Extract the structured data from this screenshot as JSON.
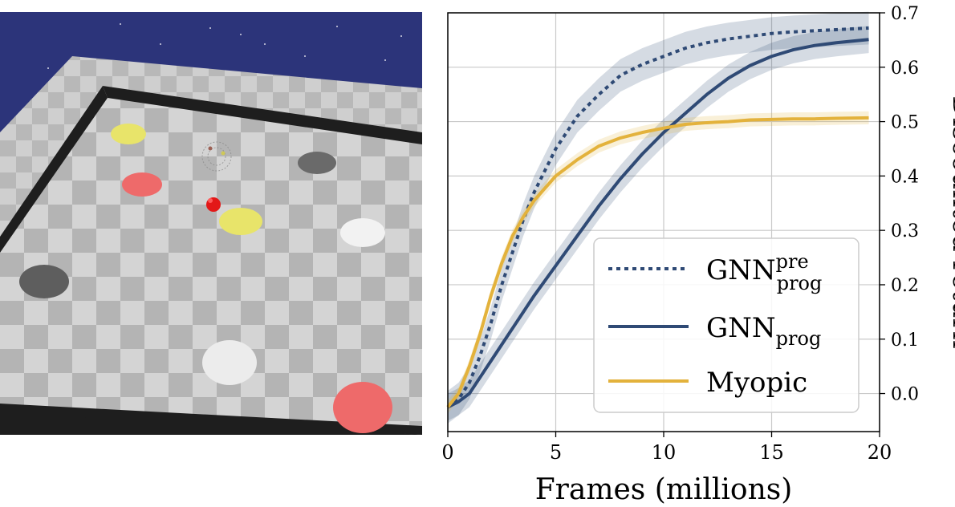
{
  "figure": {
    "scene_caption": ""
  },
  "scene": {
    "sky_color": "#2c347a",
    "floor_light": "#d6d6d6",
    "floor_dark": "#b2b2b2",
    "wall_color": "#1e1e1e",
    "objects": [
      {
        "name": "yellow-disc",
        "color": "#e8e46a"
      },
      {
        "name": "red-disc",
        "color": "#ee6a6a"
      },
      {
        "name": "dark-gray-disc",
        "color": "#6a6a6a"
      },
      {
        "name": "white-disc",
        "color": "#f2f2f2"
      },
      {
        "name": "agent",
        "color": "#e31818"
      }
    ]
  },
  "chart_data": {
    "type": "line",
    "title": "",
    "xlabel": "Frames (millions)",
    "ylabel": "Discounted return",
    "xlim": [
      0,
      20
    ],
    "ylim": [
      -0.07,
      0.7
    ],
    "xticks": [
      0,
      5,
      10,
      15,
      20
    ],
    "yticks": [
      0.0,
      0.1,
      0.2,
      0.3,
      0.4,
      0.5,
      0.6,
      0.7
    ],
    "grid": true,
    "legend_position": "bottom-right",
    "series": [
      {
        "name": "GNN",
        "name_sub": "prog",
        "name_sup": "pre",
        "style": "dotted",
        "color": "#2f4a75",
        "x": [
          0,
          0.5,
          1,
          1.5,
          2,
          2.5,
          3,
          3.5,
          4,
          5,
          6,
          7,
          8,
          9,
          10,
          11,
          12,
          13,
          14,
          15,
          16,
          17,
          18,
          19.5
        ],
        "y": [
          -0.025,
          -0.01,
          0.02,
          0.07,
          0.13,
          0.2,
          0.26,
          0.32,
          0.37,
          0.45,
          0.51,
          0.55,
          0.585,
          0.605,
          0.62,
          0.635,
          0.645,
          0.652,
          0.657,
          0.662,
          0.665,
          0.667,
          0.669,
          0.672
        ],
        "band": 0.03
      },
      {
        "name": "GNN",
        "name_sub": "prog",
        "name_sup": "",
        "style": "solid",
        "color": "#2f4a75",
        "x": [
          0,
          0.5,
          1,
          1.5,
          2,
          2.5,
          3,
          3.5,
          4,
          5,
          6,
          7,
          8,
          9,
          10,
          11,
          12,
          13,
          14,
          15,
          16,
          17,
          18,
          19.5
        ],
        "y": [
          -0.025,
          -0.015,
          0.0,
          0.03,
          0.06,
          0.09,
          0.12,
          0.15,
          0.18,
          0.235,
          0.29,
          0.345,
          0.395,
          0.44,
          0.48,
          0.515,
          0.55,
          0.58,
          0.603,
          0.62,
          0.632,
          0.64,
          0.645,
          0.651
        ],
        "band": 0.025
      },
      {
        "name": "Myopic",
        "name_sub": "",
        "name_sup": "",
        "style": "solid",
        "color": "#e3b23c",
        "x": [
          0,
          0.5,
          1,
          1.5,
          2,
          2.5,
          3,
          3.5,
          4,
          5,
          6,
          7,
          8,
          9,
          10,
          11,
          12,
          13,
          14,
          15,
          16,
          17,
          18,
          19.5
        ],
        "y": [
          -0.025,
          0.0,
          0.05,
          0.11,
          0.18,
          0.24,
          0.29,
          0.325,
          0.355,
          0.4,
          0.43,
          0.455,
          0.47,
          0.48,
          0.488,
          0.495,
          0.498,
          0.5,
          0.503,
          0.504,
          0.505,
          0.505,
          0.506,
          0.507
        ],
        "band": 0.012
      }
    ]
  }
}
